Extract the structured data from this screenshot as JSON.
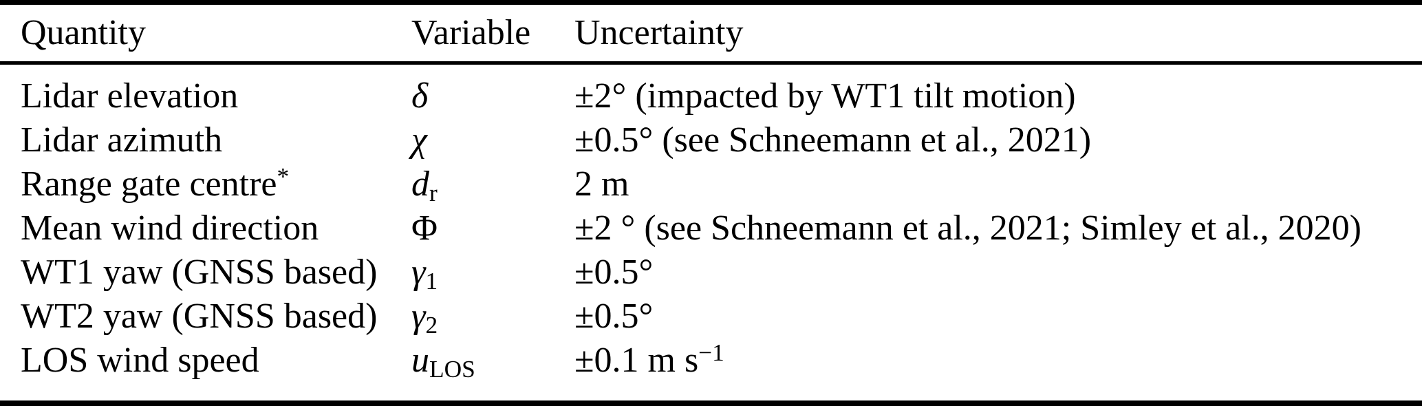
{
  "table": {
    "columns": [
      "Quantity",
      "Variable",
      "Uncertainty"
    ],
    "rows": [
      {
        "quantity": "Lidar elevation",
        "quantity_sup": "",
        "variable": "δ",
        "variable_sub": "",
        "uncertainty": "±2° (impacted by WT1 tilt motion)",
        "uncertainty_sup": ""
      },
      {
        "quantity": "Lidar azimuth",
        "quantity_sup": "",
        "variable": "χ",
        "variable_sub": "",
        "uncertainty": "±0.5° (see Schneemann et al., 2021)",
        "uncertainty_sup": ""
      },
      {
        "quantity": "Range gate centre",
        "quantity_sup": "*",
        "variable": "d",
        "variable_sub": "r",
        "uncertainty": "2 m",
        "uncertainty_sup": ""
      },
      {
        "quantity": "Mean wind direction",
        "quantity_sup": "",
        "variable": "Φ",
        "variable_sub": "",
        "uncertainty": "±2 ° (see Schneemann et al., 2021; Simley et al., 2020)",
        "uncertainty_sup": ""
      },
      {
        "quantity": "WT1 yaw (GNSS based)",
        "quantity_sup": "",
        "variable": "γ",
        "variable_sub": "1",
        "uncertainty": "±0.5°",
        "uncertainty_sup": ""
      },
      {
        "quantity": "WT2 yaw (GNSS based)",
        "quantity_sup": "",
        "variable": "γ",
        "variable_sub": "2",
        "uncertainty": "±0.5°",
        "uncertainty_sup": ""
      },
      {
        "quantity": "LOS wind speed",
        "quantity_sup": "",
        "variable": "u",
        "variable_sub": "LOS",
        "uncertainty": "±0.1 m s",
        "uncertainty_sup": "−1"
      }
    ],
    "colors": {
      "text": "#000000",
      "background": "#ffffff",
      "rule": "#000000"
    }
  }
}
